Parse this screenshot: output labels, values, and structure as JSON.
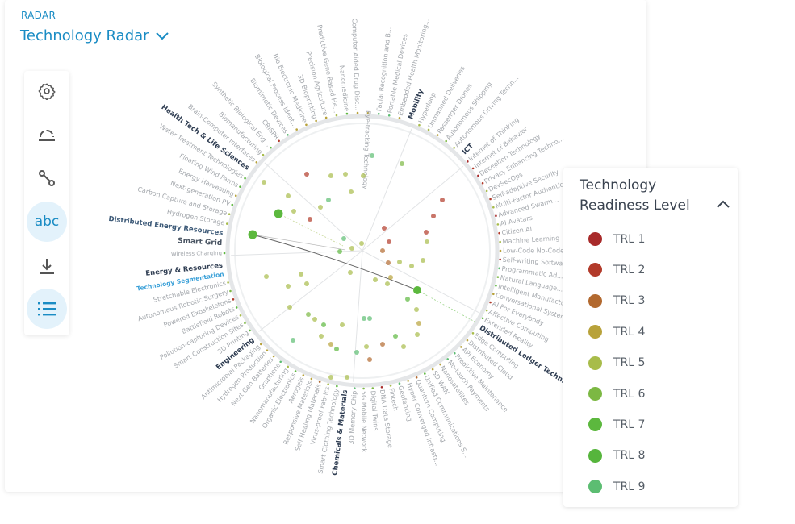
{
  "header": {
    "kicker": "RADAR",
    "title": "Technology Radar"
  },
  "sidebar": {
    "items": [
      {
        "icon": "gear-icon"
      },
      {
        "icon": "semicircle-icon"
      },
      {
        "icon": "connection-icon"
      },
      {
        "icon": "text-labels-icon",
        "label": "abc",
        "active": true
      },
      {
        "icon": "download-icon"
      },
      {
        "icon": "list-icon",
        "active": true
      }
    ]
  },
  "legend": {
    "title": "Technology Readiness Level",
    "items": [
      {
        "label": "TRL 1",
        "color": "#a82a2a"
      },
      {
        "label": "TRL 2",
        "color": "#b23a2a"
      },
      {
        "label": "TRL 3",
        "color": "#b2692f"
      },
      {
        "label": "TRL 4",
        "color": "#b8a23a"
      },
      {
        "label": "TRL 5",
        "color": "#a8bc4a"
      },
      {
        "label": "TRL 6",
        "color": "#7cb843"
      },
      {
        "label": "TRL 7",
        "color": "#5cb83e"
      },
      {
        "label": "TRL 8",
        "color": "#56b53c"
      },
      {
        "label": "TRL 9",
        "color": "#5cbd72"
      }
    ]
  },
  "radar": {
    "labels": [
      {
        "text": "Mobility",
        "type": "segment"
      },
      {
        "text": "Hyperloop",
        "trl": 5
      },
      {
        "text": "Unmanned Deliveries",
        "trl": 5
      },
      {
        "text": "Passenger Drones",
        "trl": 4
      },
      {
        "text": "Autonomous Shipping",
        "trl": 6
      },
      {
        "text": "Autonomous Driving Techn...",
        "trl": 5
      },
      {
        "text": "ICT",
        "type": "segment"
      },
      {
        "text": "Internet of Thinking",
        "trl": 1
      },
      {
        "text": "Internet of Behavior",
        "trl": 2
      },
      {
        "text": "Deception Technology",
        "trl": 1
      },
      {
        "text": "Privacy Enhancing Techno...",
        "trl": 2
      },
      {
        "text": "DevSecOps",
        "trl": 5
      },
      {
        "text": "Self-adaptive Security",
        "trl": 2
      },
      {
        "text": "Multi-Factor Authentication",
        "trl": 5
      },
      {
        "text": "Advanced Swarm...",
        "trl": 1
      },
      {
        "text": "AI Avatars",
        "trl": 5
      },
      {
        "text": "Citizen AI",
        "trl": 2
      },
      {
        "text": "Machine Learning",
        "trl": 5
      },
      {
        "text": "Low-Code No-Code",
        "trl": 4
      },
      {
        "text": "Self-writing Software",
        "trl": 1
      },
      {
        "text": "Programmatic Ad...",
        "trl": 9
      },
      {
        "text": "Natural Language...",
        "trl": 6
      },
      {
        "text": "Intelligent Manufacturing",
        "trl": 7
      },
      {
        "text": "Conversational Systems",
        "trl": 4
      },
      {
        "text": "AI For Everybody",
        "trl": 2
      },
      {
        "text": "Affective Computing",
        "trl": 5
      },
      {
        "text": "Extended Reality",
        "trl": 7
      },
      {
        "text": "Distributed Ledger Techn...",
        "type": "segment"
      },
      {
        "text": "Edge Computing",
        "trl": 5
      },
      {
        "text": "Distributed Cloud",
        "trl": 4
      },
      {
        "text": "API Economy",
        "trl": 4
      },
      {
        "text": "Predictive Maintenance",
        "trl": 9
      },
      {
        "text": "No-touch Payments",
        "trl": 9
      },
      {
        "text": "Nanosatellites",
        "trl": 4
      },
      {
        "text": "SD WAN",
        "trl": 4
      },
      {
        "text": "Unified Communications S...",
        "trl": 7
      },
      {
        "text": "Quantum Computing",
        "trl": 3
      },
      {
        "text": "Hyper Converged Infrastr...",
        "trl": 4
      },
      {
        "text": "Geofencing",
        "trl": 9
      },
      {
        "text": "Fintech",
        "trl": 5
      },
      {
        "text": "DNA Data Storage",
        "trl": 1
      },
      {
        "text": "Digital Twins",
        "trl": 6
      },
      {
        "text": "5G Mobile Network",
        "trl": 6
      },
      {
        "text": "3D Memory Chip",
        "trl": 9
      },
      {
        "text": "Chemicals & Materials",
        "type": "segment"
      },
      {
        "text": "Smart Clothing Technology",
        "trl": 7
      },
      {
        "text": "Virus-proof Fabrics",
        "trl": 5
      },
      {
        "text": "Self Healing Materials",
        "trl": 3
      },
      {
        "text": "Responsive Materials",
        "trl": 4
      },
      {
        "text": "Aerogels",
        "trl": 4
      },
      {
        "text": "Organic Electronics",
        "trl": 7
      },
      {
        "text": "Nanomanufacturing",
        "trl": 5
      },
      {
        "text": "Graphene",
        "trl": 9
      },
      {
        "text": "Next Gen Batteries",
        "trl": 4
      },
      {
        "text": "Hydrogen Production",
        "trl": 4
      },
      {
        "text": "Antimicrobial Packaging",
        "trl": 4
      },
      {
        "text": "Engineering",
        "type": "segment"
      },
      {
        "text": "3D Printing",
        "trl": 7
      },
      {
        "text": "Smart Construction Sites",
        "trl": 6
      },
      {
        "text": "Pollution-capturing Devices",
        "trl": 5
      },
      {
        "text": "Battlefield Robots",
        "trl": 7
      },
      {
        "text": "Powered Exoskeletons",
        "trl": 2
      },
      {
        "text": "Autonomous Robotic Surgery",
        "trl": 6
      },
      {
        "text": "Stretchable Electronics",
        "trl": 5
      },
      {
        "text": "Technology Segmentation",
        "type": "sub"
      },
      {
        "text": "Energy & Resources",
        "type": "segment"
      },
      {
        "text": "Wireless Charging",
        "trl": 7,
        "small": true
      },
      {
        "text": "Smart Grid",
        "type": "group"
      },
      {
        "text": "Distributed Energy Resources",
        "type": "groupblue"
      },
      {
        "text": "Hydrogen Storage",
        "trl": 5
      },
      {
        "text": "Carbon Capture and Storage",
        "trl": 5
      },
      {
        "text": "Next-generation PV",
        "trl": 7
      },
      {
        "text": "Energy Harvesting",
        "trl": 4
      },
      {
        "text": "Floating Wind Farms",
        "trl": 7
      },
      {
        "text": "Water Treatment Technologies",
        "trl": 7
      },
      {
        "text": "Health Tech & Life Sciences",
        "type": "segment"
      },
      {
        "text": "Brain-Computer Interfaces",
        "trl": 4
      },
      {
        "text": "Biomanufacturing",
        "trl": 5
      },
      {
        "text": "Synthetic Biological Eng...",
        "trl": 7
      },
      {
        "text": "CRISPR",
        "trl": 2
      },
      {
        "text": "Biomimetic Devices",
        "trl": 9
      },
      {
        "text": "Biological Process Ident...",
        "trl": 4
      },
      {
        "text": "Bio Electronic Medicine",
        "trl": 4
      },
      {
        "text": "3D Bioprinting",
        "trl": 4
      },
      {
        "text": "Precision Agriculture",
        "trl": 4
      },
      {
        "text": "Predictive Gene Based He...",
        "trl": 5
      },
      {
        "text": "Nanomedicine",
        "trl": 7
      },
      {
        "text": "Computer Aided Drug Disc...",
        "trl": 4
      },
      {
        "text": "Eye-tracking Technology",
        "trl": 4,
        "mirrored": true
      },
      {
        "text": "Facial Recognition and B...",
        "trl": 9
      },
      {
        "text": "Portable Medical Devices",
        "trl": 9
      },
      {
        "text": "Embedded Health Monitoring...",
        "trl": 4
      }
    ]
  }
}
